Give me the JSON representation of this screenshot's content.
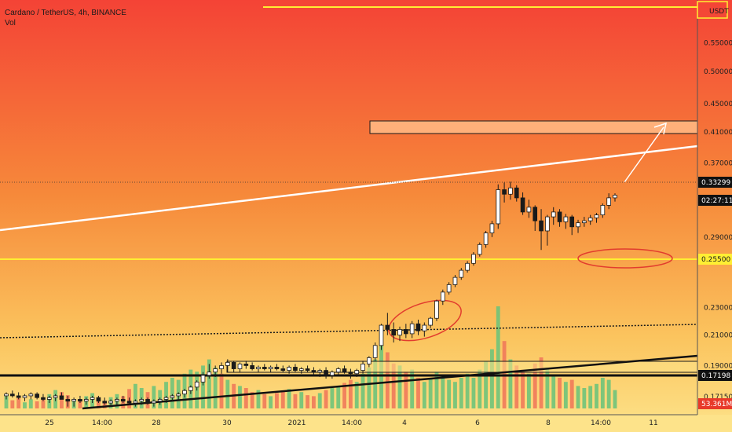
{
  "header": {
    "title": "Cardano / TetherUS, 4h, BINANCE",
    "volume_label": "Vol"
  },
  "colors": {
    "bg_top": "#f44336",
    "bg_mid": "#f79a3a",
    "bg_bottom": "#fde38a",
    "up": "#ffffff",
    "down": "#1a1a1a",
    "vol_up": "#6fc37a",
    "vol_down": "#f07a5a",
    "yellow": "#ffee33",
    "zone": "#ffb07a",
    "ellipse": "#e23c2e"
  },
  "chart_data": {
    "type": "candlestick",
    "symbol": "Cardano / TetherUS",
    "interval": "4h",
    "exchange": "BINANCE",
    "currency": "USDT",
    "y_scale": "log",
    "ylim": [
      0.165,
      0.62
    ],
    "y_ticks": [
      "0.55000",
      "0.50000",
      "0.45000",
      "0.41000",
      "0.37000",
      "0.29000",
      "0.23000",
      "0.21000",
      "0.19000",
      "0.17150"
    ],
    "x_ticks": [
      "25",
      "14:00",
      "28",
      "30",
      "2021",
      "14:00",
      "4",
      "6",
      "8",
      "14:00",
      "11"
    ],
    "price_tags": [
      {
        "value": "0.33299",
        "style": "dark"
      },
      {
        "value": "02:27:11",
        "style": "dark"
      },
      {
        "value": "0.25500",
        "style": "yellow"
      },
      {
        "value": "0.17198",
        "style": "dark"
      },
      {
        "value": "53.361M",
        "style": "red"
      }
    ],
    "candles": [
      [
        0.172,
        0.174,
        0.17,
        0.173
      ],
      [
        0.173,
        0.175,
        0.171,
        0.172
      ],
      [
        0.172,
        0.174,
        0.17,
        0.171
      ],
      [
        0.171,
        0.173,
        0.169,
        0.172
      ],
      [
        0.172,
        0.174,
        0.17,
        0.173
      ],
      [
        0.173,
        0.174,
        0.17,
        0.171
      ],
      [
        0.171,
        0.173,
        0.169,
        0.17
      ],
      [
        0.17,
        0.172,
        0.168,
        0.171
      ],
      [
        0.171,
        0.173,
        0.169,
        0.172
      ],
      [
        0.172,
        0.174,
        0.17,
        0.17
      ],
      [
        0.17,
        0.172,
        0.166,
        0.169
      ],
      [
        0.169,
        0.171,
        0.166,
        0.17
      ],
      [
        0.17,
        0.172,
        0.168,
        0.169
      ],
      [
        0.169,
        0.171,
        0.167,
        0.17
      ],
      [
        0.17,
        0.172,
        0.168,
        0.171
      ],
      [
        0.171,
        0.172,
        0.168,
        0.169
      ],
      [
        0.169,
        0.171,
        0.167,
        0.168
      ],
      [
        0.168,
        0.17,
        0.166,
        0.169
      ],
      [
        0.169,
        0.171,
        0.167,
        0.17
      ],
      [
        0.17,
        0.172,
        0.168,
        0.169
      ],
      [
        0.169,
        0.171,
        0.167,
        0.168
      ],
      [
        0.168,
        0.17,
        0.166,
        0.169
      ],
      [
        0.169,
        0.171,
        0.167,
        0.17
      ],
      [
        0.17,
        0.171,
        0.167,
        0.168
      ],
      [
        0.168,
        0.17,
        0.166,
        0.169
      ],
      [
        0.169,
        0.171,
        0.167,
        0.17
      ],
      [
        0.17,
        0.172,
        0.168,
        0.171
      ],
      [
        0.171,
        0.173,
        0.169,
        0.172
      ],
      [
        0.172,
        0.174,
        0.17,
        0.173
      ],
      [
        0.173,
        0.176,
        0.171,
        0.175
      ],
      [
        0.175,
        0.178,
        0.173,
        0.177
      ],
      [
        0.177,
        0.181,
        0.175,
        0.18
      ],
      [
        0.18,
        0.186,
        0.178,
        0.184
      ],
      [
        0.184,
        0.191,
        0.182,
        0.186
      ],
      [
        0.186,
        0.19,
        0.183,
        0.188
      ],
      [
        0.188,
        0.192,
        0.185,
        0.19
      ],
      [
        0.19,
        0.194,
        0.186,
        0.192
      ],
      [
        0.192,
        0.193,
        0.186,
        0.188
      ],
      [
        0.188,
        0.192,
        0.186,
        0.191
      ],
      [
        0.191,
        0.193,
        0.188,
        0.19
      ],
      [
        0.19,
        0.192,
        0.187,
        0.188
      ],
      [
        0.188,
        0.19,
        0.186,
        0.189
      ],
      [
        0.189,
        0.191,
        0.187,
        0.188
      ],
      [
        0.188,
        0.19,
        0.186,
        0.189
      ],
      [
        0.189,
        0.191,
        0.187,
        0.188
      ],
      [
        0.188,
        0.19,
        0.186,
        0.187
      ],
      [
        0.187,
        0.19,
        0.185,
        0.189
      ],
      [
        0.189,
        0.191,
        0.186,
        0.187
      ],
      [
        0.187,
        0.189,
        0.185,
        0.188
      ],
      [
        0.188,
        0.19,
        0.186,
        0.187
      ],
      [
        0.187,
        0.189,
        0.184,
        0.186
      ],
      [
        0.186,
        0.188,
        0.183,
        0.187
      ],
      [
        0.187,
        0.189,
        0.182,
        0.184
      ],
      [
        0.184,
        0.187,
        0.182,
        0.186
      ],
      [
        0.186,
        0.189,
        0.184,
        0.188
      ],
      [
        0.188,
        0.19,
        0.185,
        0.186
      ],
      [
        0.186,
        0.188,
        0.182,
        0.185
      ],
      [
        0.185,
        0.188,
        0.183,
        0.187
      ],
      [
        0.187,
        0.193,
        0.185,
        0.191
      ],
      [
        0.191,
        0.196,
        0.189,
        0.195
      ],
      [
        0.195,
        0.205,
        0.193,
        0.203
      ],
      [
        0.203,
        0.218,
        0.2,
        0.217
      ],
      [
        0.217,
        0.226,
        0.21,
        0.214
      ],
      [
        0.214,
        0.219,
        0.205,
        0.21
      ],
      [
        0.21,
        0.216,
        0.206,
        0.214
      ],
      [
        0.214,
        0.218,
        0.208,
        0.211
      ],
      [
        0.211,
        0.22,
        0.208,
        0.218
      ],
      [
        0.218,
        0.221,
        0.21,
        0.213
      ],
      [
        0.213,
        0.219,
        0.209,
        0.217
      ],
      [
        0.217,
        0.223,
        0.215,
        0.222
      ],
      [
        0.222,
        0.236,
        0.22,
        0.235
      ],
      [
        0.235,
        0.244,
        0.232,
        0.242
      ],
      [
        0.242,
        0.25,
        0.24,
        0.248
      ],
      [
        0.248,
        0.256,
        0.246,
        0.254
      ],
      [
        0.254,
        0.262,
        0.252,
        0.26
      ],
      [
        0.26,
        0.268,
        0.258,
        0.266
      ],
      [
        0.266,
        0.276,
        0.264,
        0.274
      ],
      [
        0.274,
        0.285,
        0.272,
        0.283
      ],
      [
        0.283,
        0.296,
        0.28,
        0.294
      ],
      [
        0.294,
        0.306,
        0.29,
        0.303
      ],
      [
        0.303,
        0.345,
        0.298,
        0.339
      ],
      [
        0.339,
        0.347,
        0.325,
        0.334
      ],
      [
        0.334,
        0.348,
        0.328,
        0.341
      ],
      [
        0.341,
        0.344,
        0.326,
        0.33
      ],
      [
        0.33,
        0.336,
        0.312,
        0.315
      ],
      [
        0.315,
        0.328,
        0.309,
        0.32
      ],
      [
        0.32,
        0.322,
        0.296,
        0.306
      ],
      [
        0.306,
        0.318,
        0.278,
        0.296
      ],
      [
        0.296,
        0.312,
        0.282,
        0.31
      ],
      [
        0.31,
        0.32,
        0.302,
        0.315
      ],
      [
        0.315,
        0.318,
        0.3,
        0.305
      ],
      [
        0.305,
        0.313,
        0.298,
        0.31
      ],
      [
        0.31,
        0.312,
        0.292,
        0.3
      ],
      [
        0.3,
        0.307,
        0.294,
        0.304
      ],
      [
        0.304,
        0.31,
        0.3,
        0.306
      ],
      [
        0.306,
        0.312,
        0.302,
        0.309
      ],
      [
        0.309,
        0.314,
        0.304,
        0.312
      ],
      [
        0.312,
        0.324,
        0.309,
        0.322
      ],
      [
        0.322,
        0.335,
        0.318,
        0.33
      ],
      [
        0.33,
        0.335,
        0.326,
        0.333
      ]
    ],
    "volume": [
      [
        12,
        1
      ],
      [
        8,
        0
      ],
      [
        10,
        0
      ],
      [
        6,
        1
      ],
      [
        9,
        1
      ],
      [
        7,
        0
      ],
      [
        11,
        0
      ],
      [
        14,
        1
      ],
      [
        18,
        1
      ],
      [
        16,
        0
      ],
      [
        13,
        0
      ],
      [
        9,
        1
      ],
      [
        8,
        0
      ],
      [
        12,
        1
      ],
      [
        15,
        1
      ],
      [
        10,
        0
      ],
      [
        7,
        0
      ],
      [
        11,
        1
      ],
      [
        14,
        1
      ],
      [
        12,
        0
      ],
      [
        19,
        0
      ],
      [
        24,
        1
      ],
      [
        20,
        1
      ],
      [
        16,
        0
      ],
      [
        22,
        1
      ],
      [
        18,
        1
      ],
      [
        26,
        1
      ],
      [
        30,
        1
      ],
      [
        28,
        1
      ],
      [
        34,
        1
      ],
      [
        38,
        1
      ],
      [
        36,
        1
      ],
      [
        42,
        1
      ],
      [
        48,
        1
      ],
      [
        40,
        1
      ],
      [
        34,
        0
      ],
      [
        28,
        1
      ],
      [
        24,
        0
      ],
      [
        22,
        1
      ],
      [
        20,
        0
      ],
      [
        16,
        0
      ],
      [
        18,
        1
      ],
      [
        14,
        0
      ],
      [
        12,
        1
      ],
      [
        15,
        0
      ],
      [
        17,
        0
      ],
      [
        19,
        1
      ],
      [
        14,
        0
      ],
      [
        16,
        1
      ],
      [
        13,
        0
      ],
      [
        12,
        0
      ],
      [
        15,
        1
      ],
      [
        18,
        0
      ],
      [
        20,
        1
      ],
      [
        22,
        1
      ],
      [
        25,
        0
      ],
      [
        28,
        0
      ],
      [
        26,
        1
      ],
      [
        34,
        1
      ],
      [
        40,
        1
      ],
      [
        48,
        1
      ],
      [
        62,
        1
      ],
      [
        55,
        0
      ],
      [
        44,
        0
      ],
      [
        42,
        1
      ],
      [
        36,
        0
      ],
      [
        38,
        1
      ],
      [
        30,
        0
      ],
      [
        26,
        1
      ],
      [
        30,
        1
      ],
      [
        36,
        1
      ],
      [
        32,
        1
      ],
      [
        28,
        1
      ],
      [
        26,
        1
      ],
      [
        30,
        1
      ],
      [
        34,
        1
      ],
      [
        30,
        1
      ],
      [
        38,
        1
      ],
      [
        46,
        1
      ],
      [
        58,
        1
      ],
      [
        100,
        1
      ],
      [
        66,
        0
      ],
      [
        48,
        1
      ],
      [
        42,
        0
      ],
      [
        38,
        0
      ],
      [
        34,
        1
      ],
      [
        44,
        0
      ],
      [
        50,
        0
      ],
      [
        40,
        1
      ],
      [
        32,
        1
      ],
      [
        30,
        0
      ],
      [
        26,
        1
      ],
      [
        28,
        0
      ],
      [
        22,
        1
      ],
      [
        20,
        1
      ],
      [
        22,
        1
      ],
      [
        24,
        1
      ],
      [
        30,
        1
      ],
      [
        28,
        1
      ],
      [
        18,
        1
      ]
    ]
  }
}
